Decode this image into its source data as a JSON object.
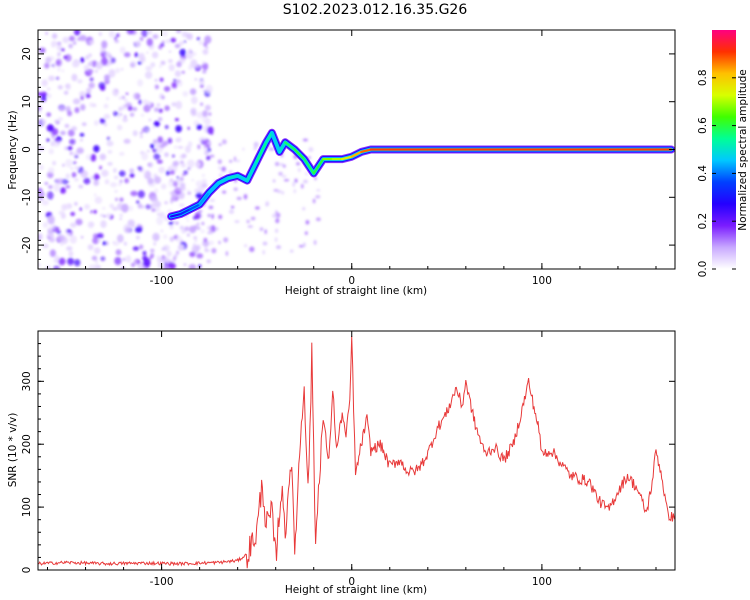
{
  "title": "S102.2023.012.16.35.G26",
  "chart_data": [
    {
      "type": "heatmap",
      "xlabel": "Height of straight line (km)",
      "ylabel": "Frequency (Hz)",
      "xlim": [
        -165,
        170
      ],
      "ylim": [
        -25,
        25
      ],
      "x_ticks": [
        -100,
        0,
        100
      ],
      "y_ticks": [
        -20,
        -10,
        0,
        10,
        20
      ],
      "colorbar": {
        "label": "Normalized spectral amplitude",
        "range": [
          0,
          1
        ],
        "ticks": [
          "0.0",
          "0.2",
          "0.4",
          "0.6",
          "0.8"
        ],
        "colors": [
          "#ffffff",
          "#c8a8ff",
          "#7a1cff",
          "#2400ff",
          "#0040ff",
          "#00c8ff",
          "#00ff96",
          "#40ff00",
          "#d8ff00",
          "#ffc000",
          "#ff3000",
          "#ff0080"
        ]
      },
      "ridge": {
        "x": [
          -95,
          -90,
          -85,
          -80,
          -75,
          -70,
          -65,
          -60,
          -55,
          -50,
          -45,
          -42,
          -38,
          -35,
          -30,
          -25,
          -20,
          -15,
          -10,
          -5,
          0,
          5,
          10,
          20,
          40,
          60,
          80,
          100,
          120,
          140,
          160,
          168
        ],
        "y": [
          -14,
          -13.5,
          -12.5,
          -11.5,
          -9,
          -7,
          -6,
          -5.5,
          -6.5,
          -2.5,
          1.5,
          3.5,
          -0.5,
          1.5,
          0,
          -2,
          -5,
          -2,
          -2,
          -2,
          -1.5,
          -0.5,
          0,
          0,
          0,
          0,
          0,
          0,
          0,
          0,
          0,
          0
        ],
        "strength": [
          0.25,
          0.3,
          0.35,
          0.4,
          0.45,
          0.45,
          0.5,
          0.5,
          0.45,
          0.55,
          0.55,
          0.5,
          0.45,
          0.55,
          0.6,
          0.6,
          0.55,
          0.65,
          0.7,
          0.7,
          0.8,
          0.85,
          0.9,
          0.9,
          0.9,
          0.9,
          0.9,
          0.9,
          0.9,
          0.9,
          0.9,
          0.9
        ]
      },
      "noise_region_x": [
        -165,
        -73
      ]
    },
    {
      "type": "line",
      "xlabel": "Height of straight line (km)",
      "ylabel": "SNR (10 * v/v)",
      "xlim": [
        -165,
        170
      ],
      "ylim": [
        0,
        380
      ],
      "x_ticks": [
        -100,
        0,
        100
      ],
      "y_ticks": [
        0,
        100,
        200,
        300
      ],
      "series": [
        {
          "color": "#e83a3a",
          "x": [
            -165,
            -150,
            -130,
            -110,
            -90,
            -70,
            -60,
            -55,
            -50,
            -47,
            -45,
            -42,
            -40,
            -37,
            -35,
            -32,
            -30,
            -27,
            -25,
            -23,
            -21,
            -19,
            -17,
            -15,
            -12,
            -10,
            -8,
            -5,
            -3,
            -1,
            0,
            2,
            5,
            8,
            10,
            15,
            20,
            25,
            30,
            35,
            40,
            45,
            50,
            55,
            58,
            60,
            62,
            65,
            70,
            75,
            80,
            85,
            90,
            93,
            95,
            98,
            100,
            105,
            110,
            115,
            120,
            125,
            130,
            135,
            140,
            145,
            150,
            155,
            158,
            160,
            163,
            166,
            170
          ],
          "y": [
            10,
            12,
            10,
            11,
            10,
            12,
            15,
            25,
            60,
            140,
            70,
            90,
            20,
            130,
            60,
            180,
            30,
            210,
            300,
            120,
            340,
            40,
            160,
            240,
            170,
            290,
            190,
            250,
            210,
            270,
            370,
            150,
            200,
            240,
            190,
            200,
            165,
            175,
            155,
            160,
            185,
            225,
            250,
            290,
            260,
            300,
            270,
            230,
            185,
            195,
            175,
            200,
            260,
            300,
            270,
            230,
            185,
            190,
            170,
            150,
            145,
            140,
            110,
            95,
            125,
            150,
            130,
            90,
            140,
            190,
            150,
            90,
            80
          ]
        }
      ]
    }
  ]
}
